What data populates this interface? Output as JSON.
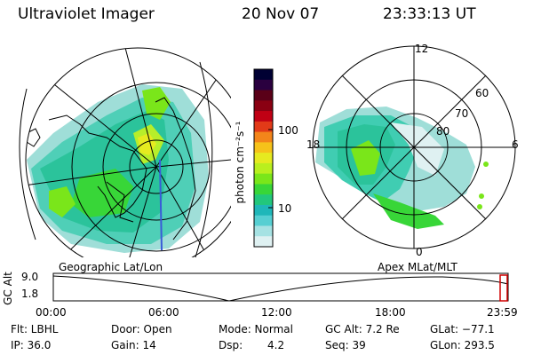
{
  "header": {
    "title": "Ultraviolet Imager",
    "date": "20 Nov 07",
    "time": "23:33:13 UT"
  },
  "colorbar": {
    "unit_label": "photon cm⁻²s⁻¹",
    "tick_labels": [
      "100",
      "10"
    ],
    "colors": [
      "#000033",
      "#2a003f",
      "#5a0018",
      "#8a0012",
      "#c00014",
      "#e23a18",
      "#f3851a",
      "#f6c21a",
      "#e6ea20",
      "#b9ef1e",
      "#7ae61a",
      "#38d638",
      "#22c77c",
      "#1fb7b9",
      "#56cfd2",
      "#a6e2e3",
      "#dff1f2"
    ]
  },
  "geo_map": {
    "label": "Geographic Lat/Lon"
  },
  "polar_plot": {
    "label": "Apex  MLat/MLT",
    "lat_labels": [
      "80",
      "70",
      "60"
    ],
    "mlt_labels": {
      "top": "12",
      "left": "18",
      "right": "6",
      "bottom": "0"
    }
  },
  "altitude_strip": {
    "label": "GC Alt",
    "y_ticks": [
      "9.0",
      "1.8"
    ],
    "x_ticks": [
      "00:00",
      "06:00",
      "12:00",
      "18:00",
      "23:59"
    ]
  },
  "info": {
    "flt": "Flt: LBHL",
    "door": "Door: Open",
    "mode": "Mode: Normal",
    "gc_alt": "GC Alt: 7.2 Re",
    "glat": "GLat: −77.1",
    "ip": "IP: 36.0",
    "gain": "Gain: 14",
    "dsp_label": "Dsp:",
    "dsp_value": "4.2",
    "seq": "Seq: 39",
    "glon": "GLon: 293.5"
  }
}
